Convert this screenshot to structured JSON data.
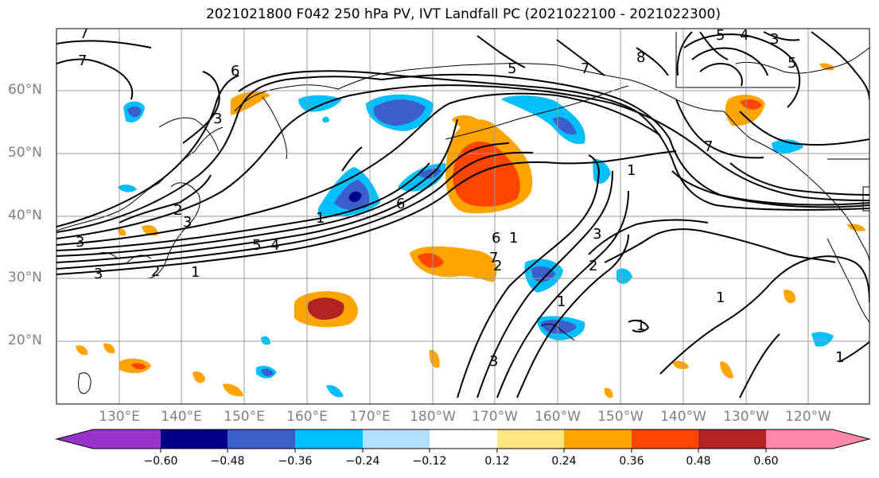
{
  "title": "2021021800 F042 250 hPa PV, IVT Landfall PC (2021022100 - 2021022300)",
  "map": {
    "lat_labels": [
      "60°N",
      "50°N",
      "40°N",
      "30°N",
      "20°N"
    ],
    "lon_labels": [
      "130°E",
      "140°E",
      "150°E",
      "160°E",
      "170°E",
      "180°W",
      "170°W",
      "160°W",
      "150°W",
      "140°W",
      "130°W",
      "120°W"
    ],
    "contour_labels": [
      "7",
      "7",
      "6",
      "3",
      "6",
      "5",
      "4",
      "3",
      "3",
      "5",
      "7",
      "8",
      "7",
      "5",
      "3",
      "1",
      "2",
      "1",
      "3",
      "2",
      "1",
      "1",
      "1",
      "2",
      "1",
      "4",
      "5",
      "3",
      "2",
      "1",
      "6",
      "1",
      "7",
      "3"
    ]
  },
  "colorbar": {
    "tick_labels": [
      "−0.60",
      "−0.48",
      "−0.36",
      "−0.24",
      "−0.12",
      "0.12",
      "0.24",
      "0.36",
      "0.48",
      "0.60"
    ],
    "colors": [
      "#9932CC",
      "#00008B",
      "#3A5FCD",
      "#00BFFF",
      "#B2DFFF",
      "#FFFFFF",
      "#FFE680",
      "#FFA500",
      "#FF4500",
      "#B22222",
      "#FF88AA"
    ]
  }
}
